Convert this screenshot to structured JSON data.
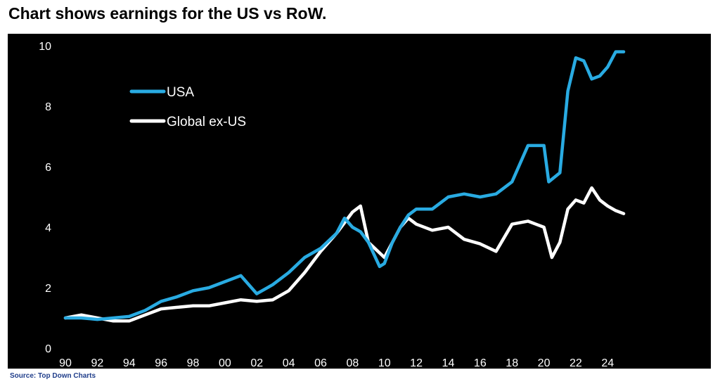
{
  "headline": "Chart shows earnings for the US vs RoW.",
  "source": "Source: Top Down Charts",
  "colors": {
    "background": "#000000",
    "usa": "#29abe2",
    "global_ex_us": "#ffffff",
    "axis_text": "#ffffff"
  },
  "chart_data": {
    "type": "line",
    "title": "",
    "xlabel": "",
    "ylabel": "",
    "xlim": [
      1990,
      2025
    ],
    "ylim": [
      0,
      10
    ],
    "grid": false,
    "legend_position": "top-left",
    "x_ticks": [
      "90",
      "92",
      "94",
      "96",
      "98",
      "00",
      "02",
      "04",
      "06",
      "08",
      "10",
      "12",
      "14",
      "16",
      "18",
      "20",
      "22",
      "24"
    ],
    "y_ticks": [
      "0",
      "2",
      "4",
      "6",
      "8",
      "10"
    ],
    "series": [
      {
        "name": "USA",
        "color": "#29abe2",
        "points": [
          [
            1990,
            1.0
          ],
          [
            1991,
            1.0
          ],
          [
            1992,
            0.95
          ],
          [
            1993,
            1.0
          ],
          [
            1994,
            1.05
          ],
          [
            1995,
            1.25
          ],
          [
            1996,
            1.55
          ],
          [
            1997,
            1.7
          ],
          [
            1998,
            1.9
          ],
          [
            1999,
            2.0
          ],
          [
            2000,
            2.2
          ],
          [
            2001,
            2.4
          ],
          [
            2002,
            1.8
          ],
          [
            2003,
            2.1
          ],
          [
            2004,
            2.5
          ],
          [
            2005,
            3.0
          ],
          [
            2006,
            3.3
          ],
          [
            2007,
            3.8
          ],
          [
            2007.5,
            4.3
          ],
          [
            2008,
            4.0
          ],
          [
            2008.5,
            3.85
          ],
          [
            2009,
            3.5
          ],
          [
            2009.7,
            2.7
          ],
          [
            2010,
            2.8
          ],
          [
            2010.5,
            3.5
          ],
          [
            2011,
            4.0
          ],
          [
            2011.5,
            4.4
          ],
          [
            2012,
            4.6
          ],
          [
            2013,
            4.6
          ],
          [
            2014,
            5.0
          ],
          [
            2015,
            5.1
          ],
          [
            2016,
            5.0
          ],
          [
            2017,
            5.1
          ],
          [
            2018,
            5.5
          ],
          [
            2019,
            6.7
          ],
          [
            2020,
            6.7
          ],
          [
            2020.3,
            5.5
          ],
          [
            2021,
            5.8
          ],
          [
            2021.5,
            8.5
          ],
          [
            2022,
            9.6
          ],
          [
            2022.5,
            9.5
          ],
          [
            2023,
            8.9
          ],
          [
            2023.5,
            9.0
          ],
          [
            2024,
            9.3
          ],
          [
            2024.5,
            9.8
          ],
          [
            2025,
            9.8
          ]
        ]
      },
      {
        "name": "Global ex-US",
        "color": "#ffffff",
        "points": [
          [
            1990,
            1.0
          ],
          [
            1991,
            1.1
          ],
          [
            1992,
            1.0
          ],
          [
            1993,
            0.9
          ],
          [
            1994,
            0.9
          ],
          [
            1995,
            1.1
          ],
          [
            1996,
            1.3
          ],
          [
            1997,
            1.35
          ],
          [
            1998,
            1.4
          ],
          [
            1999,
            1.4
          ],
          [
            2000,
            1.5
          ],
          [
            2001,
            1.6
          ],
          [
            2002,
            1.55
          ],
          [
            2003,
            1.6
          ],
          [
            2004,
            1.9
          ],
          [
            2005,
            2.5
          ],
          [
            2006,
            3.2
          ],
          [
            2007,
            3.8
          ],
          [
            2008,
            4.5
          ],
          [
            2008.5,
            4.7
          ],
          [
            2009,
            3.5
          ],
          [
            2010,
            3.0
          ],
          [
            2010.5,
            3.5
          ],
          [
            2011,
            4.0
          ],
          [
            2011.5,
            4.3
          ],
          [
            2012,
            4.1
          ],
          [
            2013,
            3.9
          ],
          [
            2014,
            4.0
          ],
          [
            2015,
            3.6
          ],
          [
            2016,
            3.45
          ],
          [
            2017,
            3.2
          ],
          [
            2018,
            4.1
          ],
          [
            2019,
            4.2
          ],
          [
            2020,
            4.0
          ],
          [
            2020.5,
            3.0
          ],
          [
            2021,
            3.5
          ],
          [
            2021.5,
            4.6
          ],
          [
            2022,
            4.9
          ],
          [
            2022.5,
            4.8
          ],
          [
            2023,
            5.3
          ],
          [
            2023.5,
            4.9
          ],
          [
            2024,
            4.7
          ],
          [
            2024.5,
            4.55
          ],
          [
            2025,
            4.45
          ]
        ]
      }
    ]
  }
}
